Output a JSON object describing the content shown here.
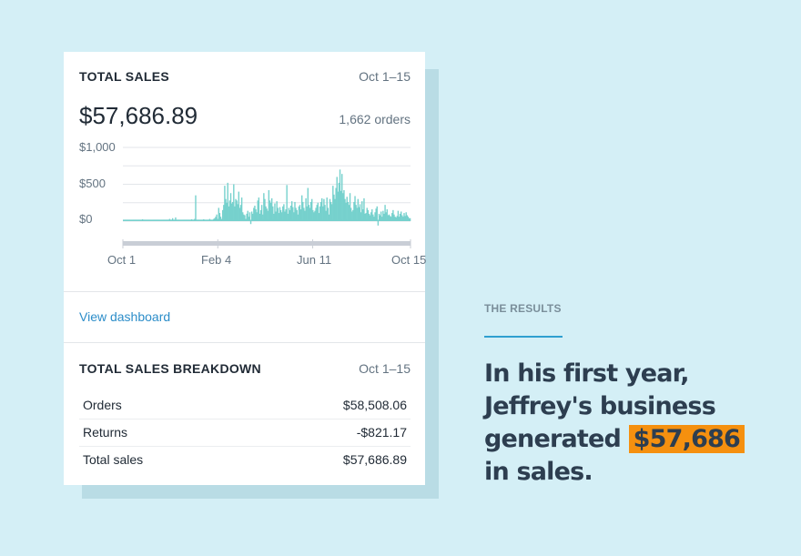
{
  "card": {
    "total_sales": {
      "title": "TOTAL SALES",
      "date_range": "Oct 1–15",
      "amount": "$57,686.89",
      "orders": "1,662 orders"
    },
    "link": "View dashboard",
    "breakdown": {
      "title": "TOTAL SALES BREAKDOWN",
      "date_range": "Oct 1–15",
      "rows": [
        {
          "label": "Orders",
          "value": "$58,508.06"
        },
        {
          "label": "Returns",
          "value": "-$821.17"
        },
        {
          "label": "Total sales",
          "value": "$57,686.89"
        }
      ]
    }
  },
  "results": {
    "eyebrow": "THE RESULTS",
    "headline_lines": [
      "In his first year,",
      "Jeffrey's business",
      "generated "
    ],
    "highlight": "$57,686",
    "headline_end": "in sales."
  },
  "colors": {
    "background": "#d4eff6",
    "bar": "#76d1cd",
    "highlight": "#f5900f",
    "link": "#2c8dc9"
  },
  "chart_data": {
    "type": "bar",
    "title": "Total sales (daily)",
    "xlabel": "",
    "ylabel": "",
    "y_ticks": [
      "$1,000",
      "$500",
      "$0"
    ],
    "y_tick_values": [
      1000,
      500,
      0
    ],
    "ylim": [
      0,
      1000
    ],
    "x_tick_labels": [
      "Oct 1",
      "Feb 4",
      "Jun 11",
      "Oct 15"
    ],
    "x_tick_positions": [
      0,
      0.33,
      0.66,
      1.0
    ],
    "grid": true,
    "series": [
      {
        "name": "Sales",
        "values": [
          20,
          20,
          20,
          20,
          20,
          20,
          20,
          20,
          20,
          20,
          20,
          20,
          20,
          20,
          20,
          20,
          20,
          20,
          20,
          25,
          20,
          20,
          20,
          20,
          20,
          20,
          20,
          20,
          20,
          20,
          20,
          20,
          20,
          20,
          20,
          20,
          20,
          20,
          20,
          20,
          20,
          20,
          20,
          20,
          20,
          20,
          30,
          20,
          20,
          40,
          20,
          20,
          50,
          20,
          20,
          20,
          20,
          20,
          20,
          20,
          20,
          20,
          20,
          20,
          20,
          20,
          20,
          20,
          25,
          20,
          20,
          30,
          350,
          20,
          20,
          20,
          20,
          20,
          20,
          20,
          25,
          20,
          20,
          20,
          20,
          20,
          30,
          20,
          20,
          20,
          30,
          40,
          60,
          90,
          30,
          180,
          110,
          60,
          30,
          150,
          220,
          480,
          300,
          250,
          520,
          200,
          280,
          380,
          240,
          260,
          500,
          200,
          300,
          280,
          230,
          400,
          180,
          220,
          320,
          120,
          90,
          80,
          30,
          100,
          140,
          60,
          120,
          -40,
          130,
          100,
          180,
          210,
          160,
          120,
          280,
          320,
          100,
          150,
          220,
          90,
          380,
          300,
          200,
          170,
          140,
          420,
          280,
          250,
          310,
          200,
          100,
          240,
          130,
          270,
          180,
          110,
          190,
          150,
          120,
          200,
          230,
          130,
          160,
          490,
          100,
          180,
          150,
          210,
          270,
          190,
          120,
          260,
          180,
          150,
          90,
          200,
          220,
          160,
          350,
          260,
          180,
          140,
          310,
          200,
          450,
          220,
          180,
          260,
          300,
          150,
          120,
          140,
          180,
          220,
          250,
          110,
          200,
          260,
          310,
          200,
          300,
          220,
          140,
          320,
          180,
          90,
          300,
          260,
          230,
          480,
          360,
          300,
          450,
          600,
          400,
          520,
          700,
          410,
          640,
          380,
          420,
          300,
          250,
          330,
          260,
          220,
          380,
          180,
          130,
          150,
          260,
          340,
          220,
          180,
          300,
          190,
          230,
          120,
          270,
          160,
          310,
          100,
          110,
          180,
          150,
          100,
          80,
          120,
          160,
          90,
          60,
          120,
          170,
          200,
          -60,
          100,
          80,
          130,
          60,
          140,
          100,
          220,
          120,
          160,
          80,
          90,
          70,
          60,
          110,
          150,
          90,
          60,
          50,
          70,
          140,
          60,
          100,
          130,
          80,
          60,
          110,
          70,
          120,
          80,
          60,
          40,
          40
        ]
      }
    ]
  }
}
